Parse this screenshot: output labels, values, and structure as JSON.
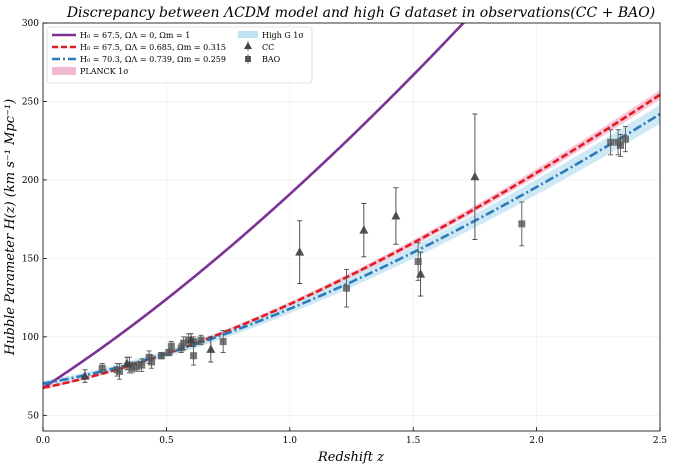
{
  "chart_data": {
    "type": "line",
    "title": "Discrepancy between ΛCDM model and high G dataset in observations(CC + BAO)",
    "xlabel": "Redshift z",
    "ylabel": "Hubble Parameter H(z) (km s⁻¹ Mpc⁻¹)",
    "xlim": [
      0.0,
      2.5
    ],
    "ylim": [
      40,
      300
    ],
    "xticks": [
      "0.0",
      "0.5",
      "1.0",
      "1.5",
      "2.0",
      "2.5"
    ],
    "yticks": [
      "50",
      "100",
      "150",
      "200",
      "250",
      "300"
    ],
    "grid": true,
    "legend_position": "top-left",
    "series": [
      {
        "name": "H₀ = 67.5, ΩΛ = 0, Ωm = 1",
        "H0": 67.5,
        "omega_lambda": 0,
        "omega_m": 1,
        "style": "solid",
        "color": "#7b3294"
      },
      {
        "name": "H₀ = 67.5, ΩΛ = 0.685, Ωm = 0.315",
        "H0": 67.5,
        "omega_lambda": 0.685,
        "omega_m": 0.315,
        "style": "dashed",
        "color": "#e41a1c"
      },
      {
        "name": "H₀ = 70.3, ΩΛ = 0.739, Ωm = 0.259",
        "H0": 70.3,
        "omega_lambda": 0.739,
        "omega_m": 0.259,
        "style": "dashdot",
        "color": "#2b7bba"
      }
    ],
    "bands": [
      {
        "name": "PLANCK 1σ",
        "color": "#f4b6d2",
        "base_series": 1,
        "rel_width": 0.012
      },
      {
        "name": "High G 1σ",
        "color": "#bfe2f0",
        "base_series": 2,
        "rel_width": 0.025
      }
    ],
    "cc_data": {
      "name": "CC",
      "marker": "triangle",
      "color": "#404040",
      "points": [
        {
          "z": 0.17,
          "H": 75,
          "err": 4
        },
        {
          "z": 0.34,
          "H": 83,
          "err": 4
        },
        {
          "z": 0.6,
          "H": 98,
          "err": 4
        },
        {
          "z": 0.68,
          "H": 92,
          "err": 8
        },
        {
          "z": 1.04,
          "H": 154,
          "err": 20
        },
        {
          "z": 1.3,
          "H": 168,
          "err": 17
        },
        {
          "z": 1.43,
          "H": 177,
          "err": 18
        },
        {
          "z": 1.53,
          "H": 140,
          "err": 14
        },
        {
          "z": 1.75,
          "H": 202,
          "err": 40
        }
      ]
    },
    "bao_data": {
      "name": "BAO",
      "marker": "square",
      "color": "#555555",
      "points": [
        {
          "z": 0.24,
          "H": 80,
          "err": 3
        },
        {
          "z": 0.3,
          "H": 79,
          "err": 4
        },
        {
          "z": 0.31,
          "H": 78,
          "err": 5
        },
        {
          "z": 0.35,
          "H": 82,
          "err": 5
        },
        {
          "z": 0.36,
          "H": 80,
          "err": 3
        },
        {
          "z": 0.38,
          "H": 81,
          "err": 3
        },
        {
          "z": 0.4,
          "H": 82,
          "err": 4
        },
        {
          "z": 0.43,
          "H": 87,
          "err": 4
        },
        {
          "z": 0.44,
          "H": 84,
          "err": 4
        },
        {
          "z": 0.48,
          "H": 88,
          "err": 2
        },
        {
          "z": 0.51,
          "H": 90,
          "err": 2
        },
        {
          "z": 0.52,
          "H": 94,
          "err": 3
        },
        {
          "z": 0.56,
          "H": 93,
          "err": 3
        },
        {
          "z": 0.57,
          "H": 96,
          "err": 4
        },
        {
          "z": 0.59,
          "H": 98,
          "err": 4
        },
        {
          "z": 0.61,
          "H": 97,
          "err": 3
        },
        {
          "z": 0.61,
          "H": 88,
          "err": 6
        },
        {
          "z": 0.64,
          "H": 98,
          "err": 3
        },
        {
          "z": 0.73,
          "H": 97,
          "err": 7
        },
        {
          "z": 1.23,
          "H": 131,
          "err": 12
        },
        {
          "z": 1.52,
          "H": 148,
          "err": 12
        },
        {
          "z": 1.94,
          "H": 172,
          "err": 14
        },
        {
          "z": 2.3,
          "H": 224,
          "err": 8
        },
        {
          "z": 2.33,
          "H": 224,
          "err": 8
        },
        {
          "z": 2.34,
          "H": 222,
          "err": 7
        },
        {
          "z": 2.36,
          "H": 226,
          "err": 8
        }
      ]
    }
  }
}
